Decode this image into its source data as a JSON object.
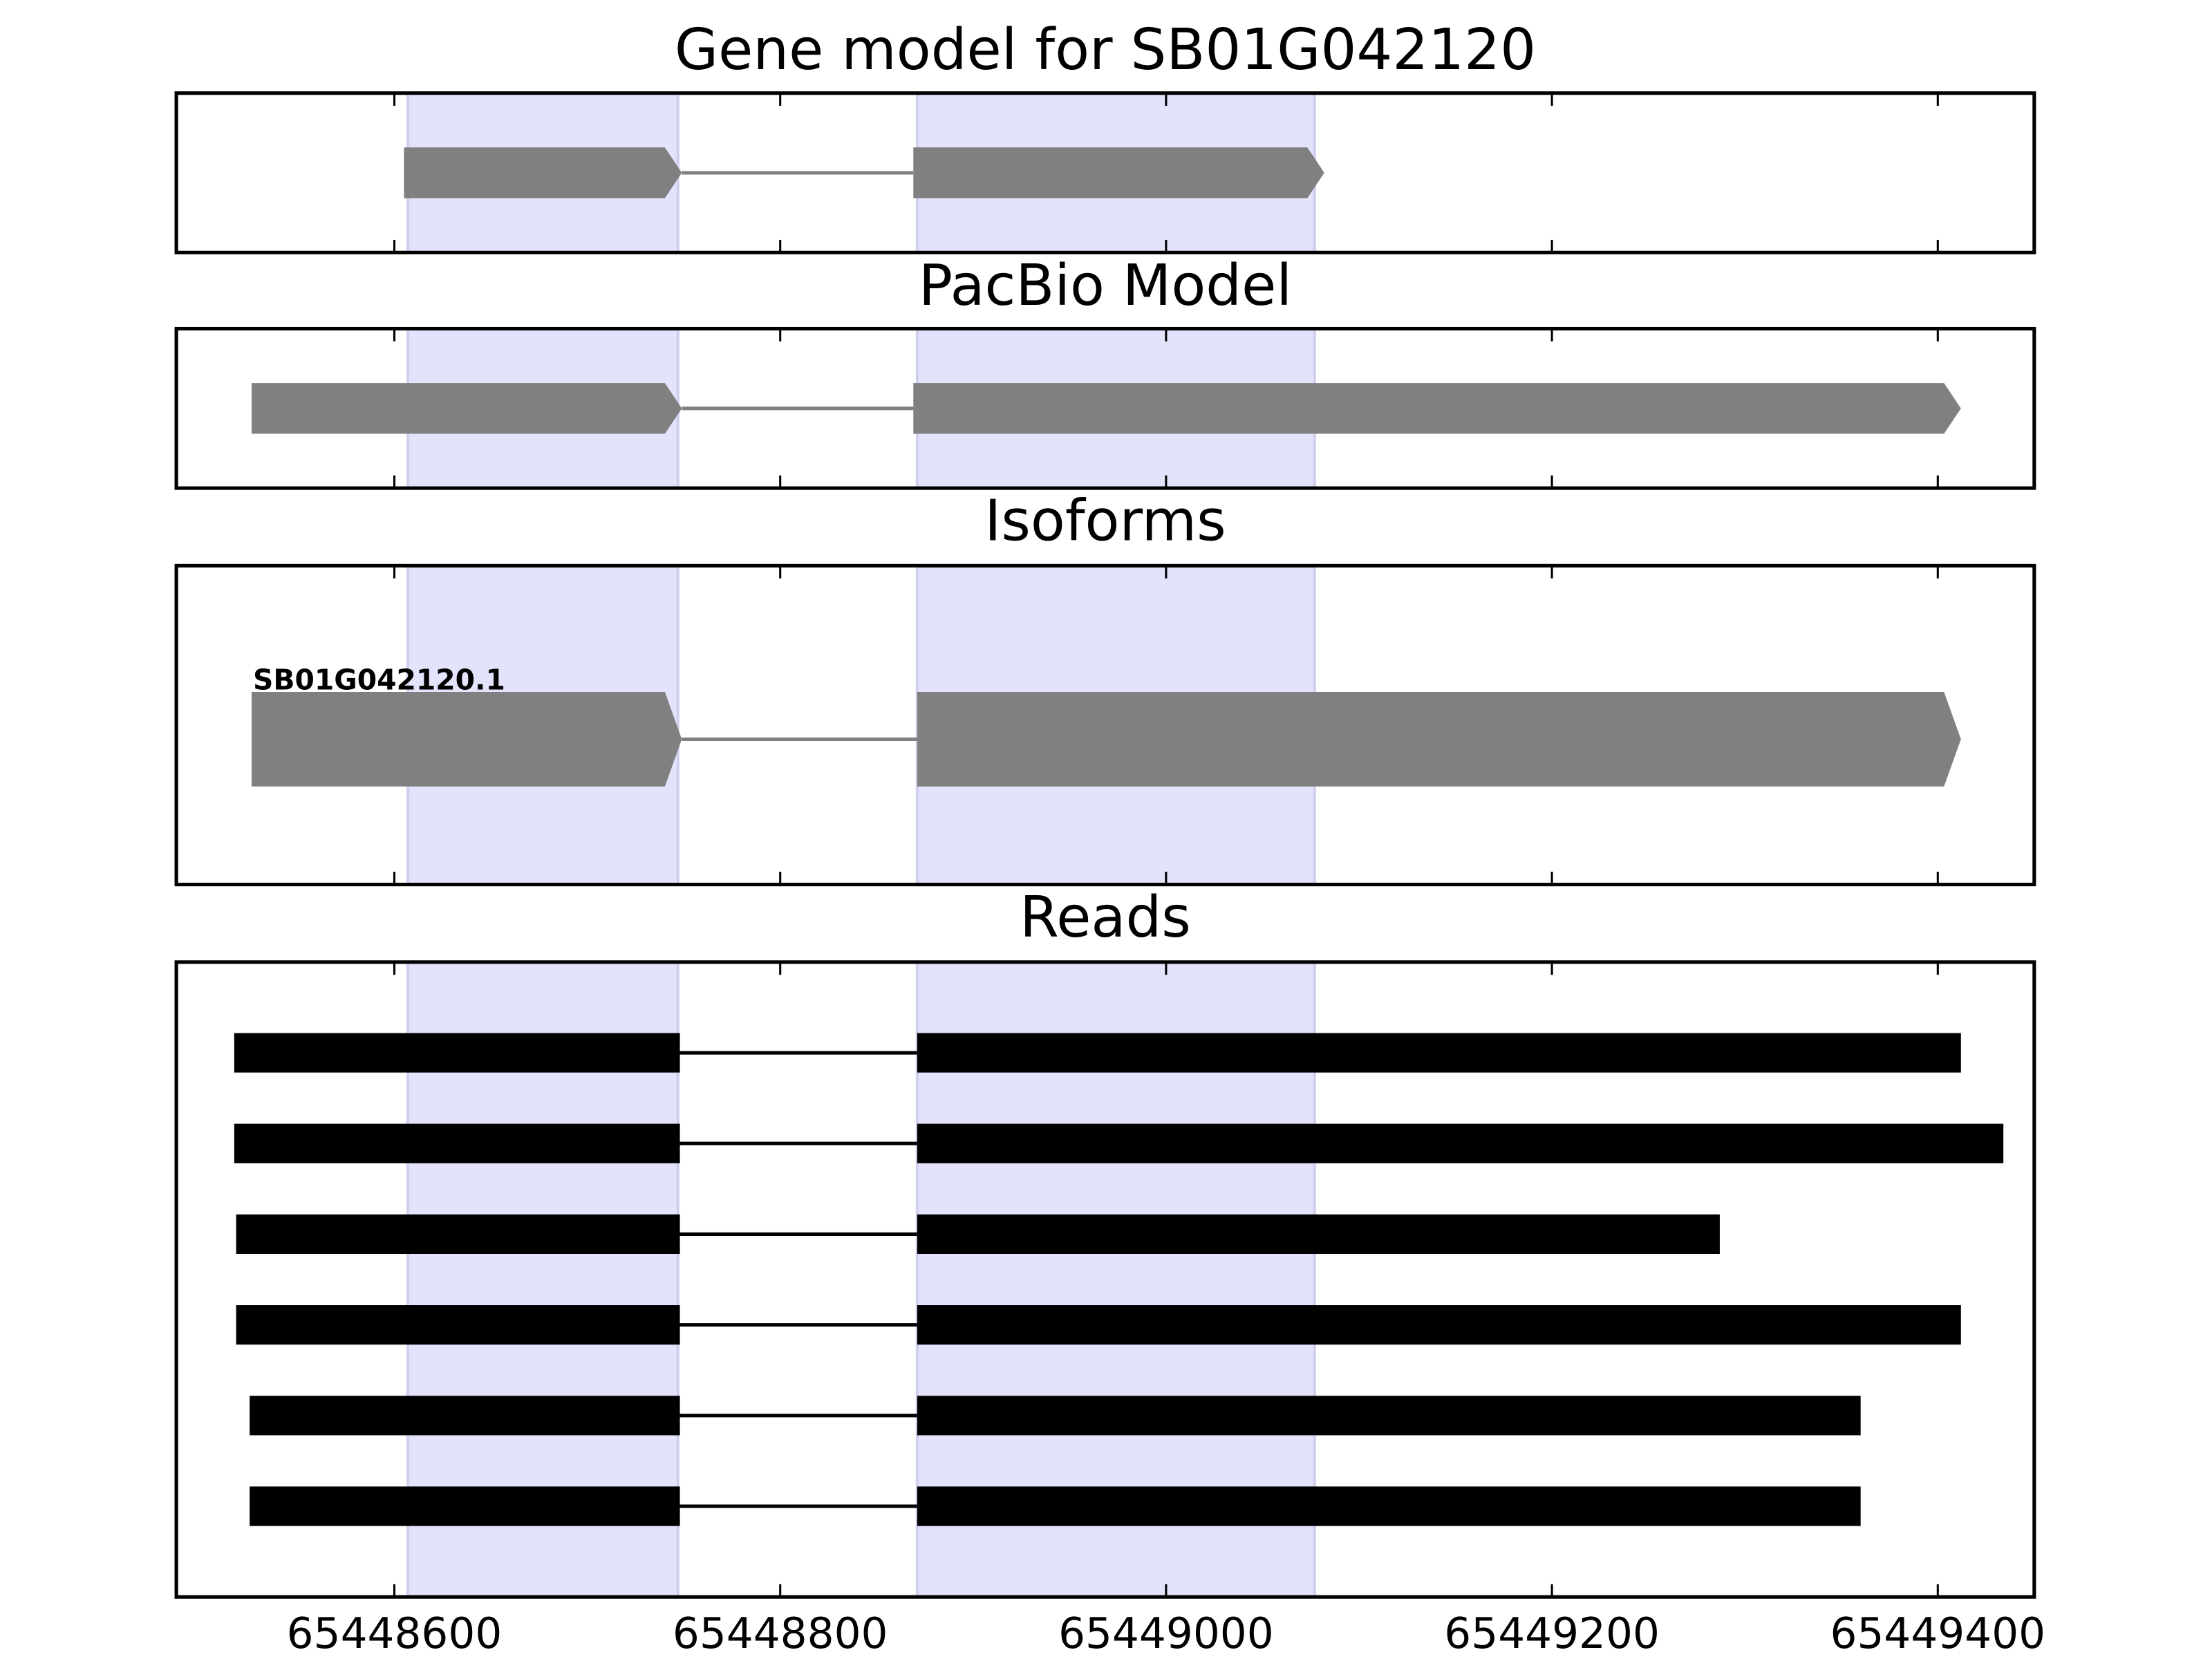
{
  "chart_data": {
    "type": "gene-tracks",
    "xlim": [
      65448487,
      65449450
    ],
    "xticks": [
      65448600,
      65448800,
      65449000,
      65449200,
      65449400
    ],
    "highlight_color": "#e3e3fc",
    "highlights": [
      [
        65448607,
        65448747
      ],
      [
        65448871,
        65449077
      ]
    ],
    "panels": [
      {
        "title": "Gene model for SB01G042120",
        "style": "arrow",
        "color": "#808080",
        "features": [
          {
            "exons": [
              [
                65448605,
                65448749
              ],
              [
                65448869,
                65449082
              ]
            ]
          }
        ]
      },
      {
        "title": "PacBio Model",
        "style": "arrow",
        "color": "#808080",
        "features": [
          {
            "exons": [
              [
                65448526,
                65448749
              ],
              [
                65448869,
                65449412
              ]
            ]
          }
        ]
      },
      {
        "title": "Isoforms",
        "style": "arrow",
        "color": "#808080",
        "features": [
          {
            "name": "SB01G042120.1",
            "exons": [
              [
                65448526,
                65448749
              ],
              [
                65448871,
                65449412
              ]
            ]
          }
        ]
      },
      {
        "title": "Reads",
        "style": "bar",
        "color": "#000000",
        "features": [
          {
            "exons": [
              [
                65448517,
                65448748
              ],
              [
                65448871,
                65449412
              ]
            ]
          },
          {
            "exons": [
              [
                65448517,
                65448748
              ],
              [
                65448871,
                65449434
              ]
            ]
          },
          {
            "exons": [
              [
                65448518,
                65448748
              ],
              [
                65448871,
                65449287
              ]
            ]
          },
          {
            "exons": [
              [
                65448518,
                65448748
              ],
              [
                65448871,
                65449412
              ]
            ]
          },
          {
            "exons": [
              [
                65448525,
                65448748
              ],
              [
                65448871,
                65449360
              ]
            ]
          },
          {
            "exons": [
              [
                65448525,
                65448748
              ],
              [
                65448871,
                65449360
              ]
            ]
          }
        ]
      }
    ]
  }
}
